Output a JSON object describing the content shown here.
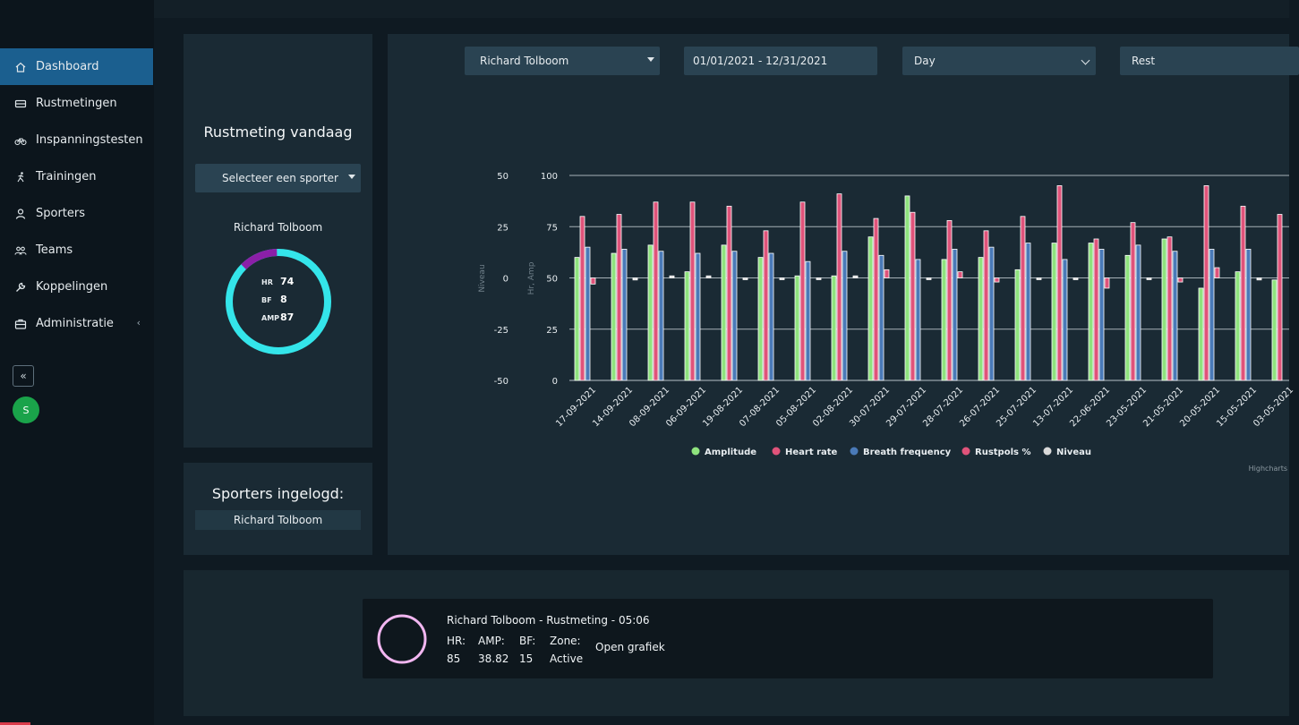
{
  "sidebar": {
    "items": [
      {
        "label": "Dashboard",
        "icon": "home-icon",
        "active": true
      },
      {
        "label": "Rustmetingen",
        "icon": "bed-icon"
      },
      {
        "label": "Inspanningstesten",
        "icon": "bicycle-icon"
      },
      {
        "label": "Trainingen",
        "icon": "running-icon"
      },
      {
        "label": "Sporters",
        "icon": "user-icon"
      },
      {
        "label": "Teams",
        "icon": "users-icon"
      },
      {
        "label": "Koppelingen",
        "icon": "wrench-icon"
      },
      {
        "label": "Administratie",
        "icon": "briefcase-icon"
      }
    ],
    "avatar_initial": "S"
  },
  "rust_panel": {
    "title": "Rustmeting vandaag",
    "select_label": "Selecteer een sporter",
    "athlete_name": "Richard Tolboom",
    "stats": [
      {
        "label": "HR",
        "value": "74"
      },
      {
        "label": "BF",
        "value": "8"
      },
      {
        "label": "AMP",
        "value": "87"
      }
    ],
    "ring_colors": {
      "main": "#34e5ea",
      "accent": "#8b1fa8"
    }
  },
  "sporters_panel": {
    "title": "Sporters ingelogd:",
    "names": [
      "Richard Tolboom"
    ]
  },
  "filters": {
    "athlete": "Richard Tolboom",
    "date_range": "01/01/2021 - 12/31/2021",
    "interval": "Day",
    "type": "Rest"
  },
  "chart_data": {
    "type": "bar",
    "credit": "Highcharts",
    "left_axis_title": "Niveau",
    "left_axis_ticks": [
      "50",
      "25",
      "0",
      "-25",
      "-50"
    ],
    "right_axis_title": "Hr, Amp",
    "right_axis_ticks": [
      "100",
      "75",
      "50",
      "25",
      "0"
    ],
    "categories": [
      "17-09-2021",
      "14-09-2021",
      "08-09-2021",
      "06-09-2021",
      "19-08-2021",
      "07-08-2021",
      "05-08-2021",
      "02-08-2021",
      "30-07-2021",
      "29-07-2021",
      "28-07-2021",
      "26-07-2021",
      "25-07-2021",
      "13-07-2021",
      "22-06-2021",
      "23-05-2021",
      "21-05-2021",
      "20-05-2021",
      "15-05-2021",
      "03-05-2021"
    ],
    "series": [
      {
        "name": "Amplitude",
        "color": "#8fe37e",
        "values": [
          60,
          62,
          66,
          53,
          66,
          60,
          51,
          51,
          70,
          90,
          59,
          60,
          54,
          67,
          67,
          61,
          69,
          45,
          53,
          49
        ]
      },
      {
        "name": "Heart rate",
        "color": "#e0537a",
        "values": [
          80,
          81,
          87,
          87,
          85,
          73,
          87,
          91,
          79,
          82,
          78,
          73,
          80,
          95,
          69,
          77,
          70,
          95,
          85,
          81
        ]
      },
      {
        "name": "Breath frequency",
        "color": "#4a7ab8",
        "values": [
          65,
          64,
          63,
          62,
          63,
          62,
          58,
          63,
          61,
          59,
          64,
          65,
          67,
          59,
          64,
          66,
          63,
          64,
          64,
          null
        ]
      },
      {
        "name": "Rustpols %",
        "color": "#e0537a",
        "values": [
          -3,
          null,
          null,
          null,
          null,
          null,
          null,
          null,
          4,
          null,
          3,
          -2,
          null,
          null,
          -5,
          null,
          -2,
          5,
          null,
          null
        ]
      },
      {
        "name": "Niveau",
        "color": "#d9d9d9",
        "values": [
          null,
          -1,
          1,
          1,
          0,
          0,
          0,
          1,
          null,
          0,
          null,
          null,
          0,
          0,
          null,
          0,
          null,
          null,
          -1,
          null
        ]
      }
    ]
  },
  "session": {
    "title": "Richard Tolboom - Rustmeting - 05:06",
    "fields": [
      {
        "label": "HR:",
        "value": "85"
      },
      {
        "label": "AMP:",
        "value": "38.82"
      },
      {
        "label": "BF:",
        "value": "15"
      },
      {
        "label": "Zone:",
        "value": "Active"
      }
    ],
    "link": "Open grafiek",
    "ring_color": "#f1b6f0"
  }
}
